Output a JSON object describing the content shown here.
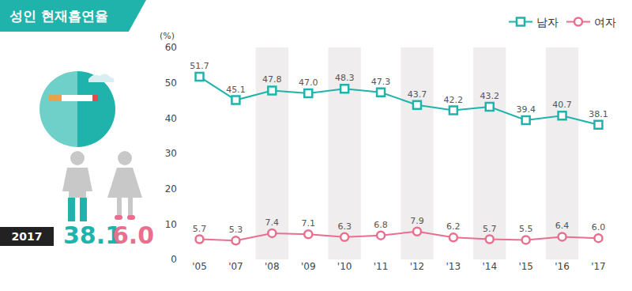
{
  "chart_data": {
    "type": "line",
    "title": "성인 현재흡연율",
    "ylabel": "(%)",
    "categories": [
      "'05",
      "'07",
      "'08",
      "'09",
      "'10",
      "'11",
      "'12",
      "'13",
      "'14",
      "'15",
      "'16",
      "'17"
    ],
    "series": [
      {
        "name": "남자",
        "color": "#1fb3ab",
        "marker": "square",
        "values": [
          51.7,
          45.1,
          47.8,
          47.0,
          48.3,
          47.3,
          43.7,
          42.2,
          43.2,
          39.4,
          40.7,
          38.1
        ],
        "value_labels": [
          "51.7",
          "45.1",
          "47.8",
          "47.0",
          "48.3",
          "47.3",
          "43.7",
          "42.2",
          "43.2",
          "39.4",
          "40.7",
          "38.1"
        ]
      },
      {
        "name": "여자",
        "color": "#e8708e",
        "marker": "circle",
        "values": [
          5.7,
          5.3,
          7.4,
          7.1,
          6.3,
          6.8,
          7.9,
          6.2,
          5.7,
          5.5,
          6.4,
          6.0
        ],
        "value_labels": [
          "5.7",
          "5.3",
          "7.4",
          "7.1",
          "6.3",
          "6.8",
          "7.9",
          "6.2",
          "5.7",
          "5.5",
          "6.4",
          "6.0"
        ]
      }
    ],
    "ylim": [
      0,
      60
    ],
    "yticks": [
      0,
      10,
      20,
      30,
      40,
      50,
      60
    ],
    "grid": false,
    "legend": "top right",
    "data_labels": true,
    "highlight": {
      "label": "2017",
      "value_labels": [
        "38.1",
        "6.0"
      ]
    }
  }
}
